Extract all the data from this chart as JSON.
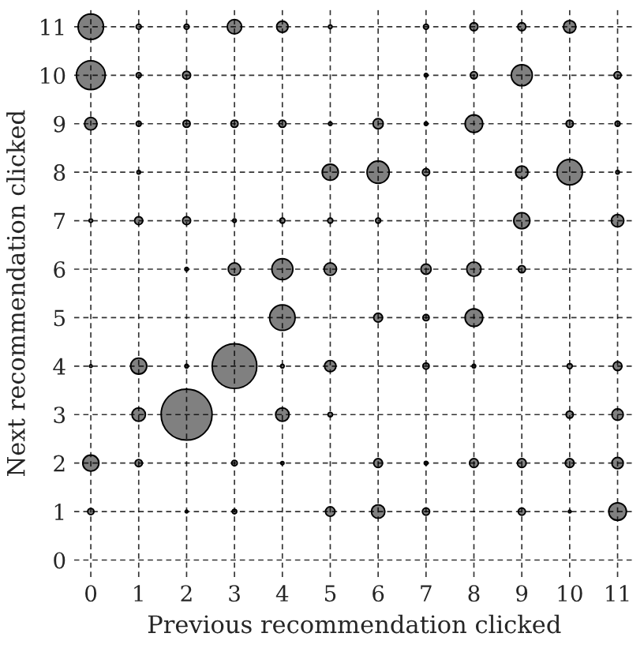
{
  "chart_data": {
    "type": "bubble",
    "xlabel": "Previous recommendation clicked",
    "ylabel": "Next recommendation clicked",
    "xlim": [
      -0.35,
      11.35
    ],
    "ylim": [
      -0.35,
      11.35
    ],
    "xticks": [
      0,
      1,
      2,
      3,
      4,
      5,
      6,
      7,
      8,
      9,
      10,
      11
    ],
    "yticks": [
      0,
      1,
      2,
      3,
      4,
      5,
      6,
      7,
      8,
      9,
      10,
      11
    ],
    "grid": true,
    "series": [
      {
        "color": "#808080",
        "x": [
          0,
          1,
          2,
          3,
          4,
          5,
          7,
          8,
          9,
          10,
          0,
          1,
          2,
          7,
          8,
          9,
          11,
          0,
          1,
          2,
          3,
          4,
          5,
          6,
          7,
          8,
          10,
          11,
          1,
          5,
          6,
          7,
          9,
          10,
          11,
          0,
          1,
          2,
          3,
          4,
          5,
          6,
          9,
          11,
          2,
          3,
          4,
          5,
          7,
          8,
          9,
          4,
          6,
          7,
          8,
          0,
          1,
          2,
          3,
          4,
          5,
          7,
          8,
          10,
          11,
          1,
          2,
          4,
          5,
          10,
          11,
          0,
          1,
          3,
          4,
          6,
          7,
          8,
          9,
          10,
          11,
          0,
          2,
          3,
          5,
          6,
          7,
          9,
          10,
          11
        ],
        "values": [
          11,
          11,
          11,
          11,
          11,
          11,
          11,
          11,
          11,
          11,
          10,
          10,
          10,
          10,
          10,
          10,
          10,
          9,
          9,
          9,
          9,
          9,
          9,
          9,
          9,
          9,
          9,
          9,
          8,
          8,
          8,
          8,
          8,
          8,
          8,
          7,
          7,
          7,
          7,
          7,
          7,
          7,
          7,
          7,
          6,
          6,
          6,
          6,
          6,
          6,
          6,
          5,
          5,
          5,
          5,
          4,
          4,
          4,
          4,
          4,
          4,
          4,
          4,
          4,
          4,
          3,
          3,
          3,
          3,
          3,
          3,
          2,
          2,
          2,
          2,
          2,
          2,
          2,
          2,
          2,
          2,
          1,
          1,
          1,
          1,
          1,
          1,
          1,
          1,
          1
        ],
        "sizes": [
          0.25,
          0.01,
          0.01,
          0.08,
          0.05,
          0.005,
          0.01,
          0.025,
          0.025,
          0.06,
          0.32,
          0.01,
          0.025,
          0.005,
          0.02,
          0.17,
          0.02,
          0.06,
          0.01,
          0.02,
          0.02,
          0.02,
          0.005,
          0.04,
          0.005,
          0.12,
          0.02,
          0.01,
          0.005,
          0.1,
          0.19,
          0.02,
          0.06,
          0.25,
          0.005,
          0.005,
          0.025,
          0.025,
          0.005,
          0.01,
          0.01,
          0.01,
          0.1,
          0.06,
          0.005,
          0.06,
          0.17,
          0.06,
          0.04,
          0.08,
          0.02,
          0.25,
          0.03,
          0.015,
          0.12,
          0.003,
          0.1,
          0.005,
          0.77,
          0.005,
          0.05,
          0.015,
          0.005,
          0.01,
          0.03,
          0.07,
          1,
          0.07,
          0.008,
          0.02,
          0.05,
          0.1,
          0.02,
          0.012,
          0.004,
          0.03,
          0.005,
          0.03,
          0.03,
          0.03,
          0.05,
          0.015,
          0.003,
          0.008,
          0.035,
          0.07,
          0.02,
          0.02,
          0.003,
          0.12
        ]
      }
    ]
  }
}
